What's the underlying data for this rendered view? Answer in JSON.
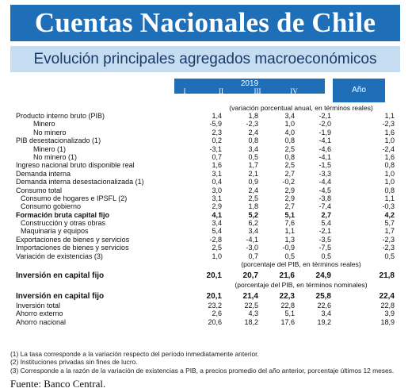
{
  "title": "Cuentas Nacionales de Chile",
  "subtitle": "Evolución principales agregados macroeconómicos",
  "header": {
    "year": "2019",
    "quarters": [
      "I",
      "II",
      "III",
      "IV"
    ],
    "annual": "Año"
  },
  "section1_note": "(variación porcentual anual, en términos reales)",
  "rows1": [
    {
      "label": "Producto interno bruto (PIB)",
      "v": [
        "1,4",
        "1,8",
        "3,4",
        "-2,1",
        "1,1"
      ]
    },
    {
      "label": "Minero",
      "v": [
        "-5,9",
        "-2,3",
        "1,0",
        "-2,0",
        "-2,3"
      ]
    },
    {
      "label": "No minero",
      "v": [
        "2,3",
        "2,4",
        "4,0",
        "-1,9",
        "1,6"
      ]
    },
    {
      "label": "PIB desestacionalizado (1)",
      "v": [
        "0,2",
        "0,8",
        "0,8",
        "-4,1",
        "1,0"
      ]
    },
    {
      "label": "Minero (1)",
      "v": [
        "-3,1",
        "3,4",
        "2,5",
        "-4,6",
        "-2,4"
      ]
    },
    {
      "label": "No minero (1)",
      "v": [
        "0,7",
        "0,5",
        "0,8",
        "-4,1",
        "1,6"
      ]
    },
    {
      "label": "Ingreso nacional bruto disponible real",
      "v": [
        "1,6",
        "1,7",
        "2,5",
        "-1,5",
        "0,8"
      ]
    },
    {
      "label": "Demanda interna",
      "v": [
        "3,1",
        "2,1",
        "2,7",
        "-3,3",
        "1,0"
      ]
    },
    {
      "label": "Demanda interna desestacionalizada (1)",
      "v": [
        "0,4",
        "0,9",
        "-0,2",
        "-4,4",
        "1,0"
      ]
    },
    {
      "label": "Consumo total",
      "v": [
        "3,0",
        "2,4",
        "2,9",
        "-4,5",
        "0,8"
      ]
    },
    {
      "label": "Consumo de hogares e IPSFL (2)",
      "v": [
        "3,1",
        "2,5",
        "2,9",
        "-3,8",
        "1,1"
      ]
    },
    {
      "label": "Consumo gobierno",
      "v": [
        "2,9",
        "1,8",
        "2,7",
        "-7,4",
        "-0,3"
      ]
    },
    {
      "label": "Formación bruta capital fijo",
      "v": [
        "4,1",
        "5,2",
        "5,1",
        "2,7",
        "4,2"
      ]
    },
    {
      "label": "Construcción y otras obras",
      "v": [
        "3,4",
        "6,2",
        "7,6",
        "5,4",
        "5,7"
      ]
    },
    {
      "label": "Maquinaria y equipos",
      "v": [
        "5,4",
        "3,4",
        "1,1",
        "-2,1",
        "1,7"
      ]
    },
    {
      "label": "Exportaciones de bienes y servicios",
      "v": [
        "-2,8",
        "-4,1",
        "1,3",
        "-3,5",
        "-2,3"
      ]
    },
    {
      "label": "Importaciones de bienes y servicios",
      "v": [
        "2,5",
        "-3,0",
        "-0,9",
        "-7,5",
        "-2,3"
      ]
    },
    {
      "label": "Variación de existencias (3)",
      "v": [
        "1,0",
        "0,7",
        "0,5",
        "0,5",
        "0,5"
      ]
    }
  ],
  "section2_note": "(porcentaje del PIB, en términos reales)",
  "rows2": [
    {
      "label": "Inversión en capital fijo",
      "v": [
        "20,1",
        "20,7",
        "21,6",
        "24,9",
        "21,8"
      ]
    }
  ],
  "section3_note": "(porcentaje del PIB, en términos nominales)",
  "rows3": [
    {
      "label": "Inversión en capital fijo",
      "v": [
        "20,1",
        "21,4",
        "22,3",
        "25,8",
        "22,4"
      ]
    },
    {
      "label": "Inversión total",
      "v": [
        "23,2",
        "22,5",
        "22,8",
        "22,6",
        "22,8"
      ]
    },
    {
      "label": "Ahorro externo",
      "v": [
        "2,6",
        "4,3",
        "5,1",
        "3,4",
        "3,9"
      ]
    },
    {
      "label": "Ahorro nacional",
      "v": [
        "20,6",
        "18,2",
        "17,6",
        "19,2",
        "18,9"
      ]
    }
  ],
  "footnotes": [
    "(1) La tasa corresponde a la variación respecto del período inmediatamente anterior.",
    "(2) Instituciones privadas sin fines de lucro.",
    "(3) Corresponde a la razón de la variación de existencias a PIB, a precios promedio del año anterior, porcentaje últimos 12 meses."
  ],
  "source": "Fuente: Banco Central."
}
